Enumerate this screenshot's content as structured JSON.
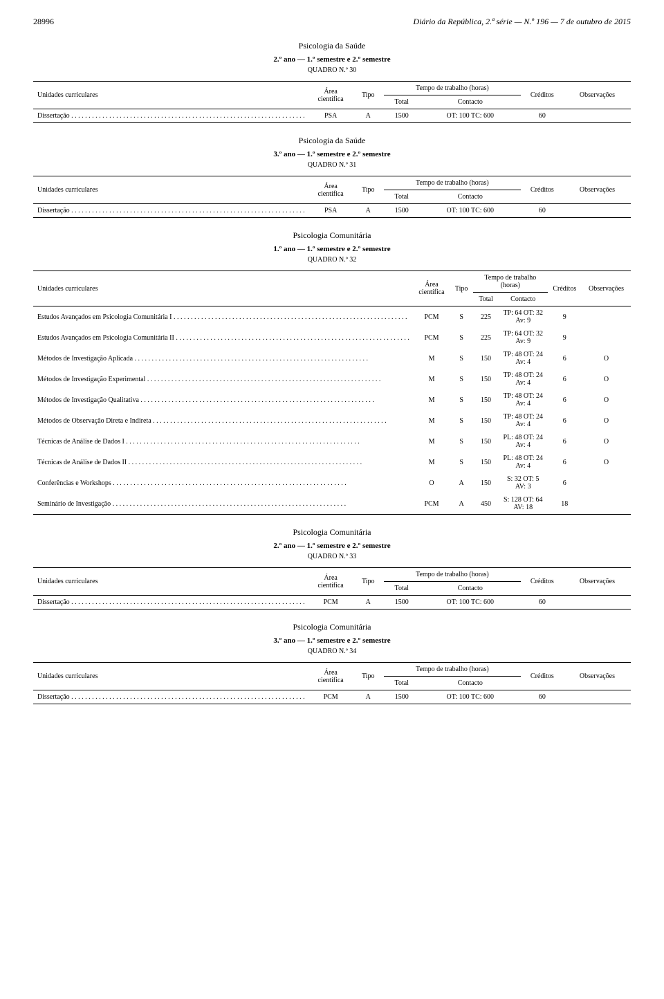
{
  "header": {
    "page_number": "28996",
    "publication": "Diário da República, 2.ª série — N.º 196 — 7 de outubro de 2015"
  },
  "table_headers": {
    "uc": "Unidades curriculares",
    "area": "Área científica",
    "tipo": "Tipo",
    "tempo": "Tempo de trabalho (horas)",
    "total": "Total",
    "contacto": "Contacto",
    "creditos": "Créditos",
    "obs": "Observações"
  },
  "sections": [
    {
      "title": "Psicologia da Saúde",
      "sub": "2.º ano — 1.º semestre e 2.º semestre",
      "quadro": "QUADRO N.º 30",
      "rows": [
        {
          "uc": "Dissertação",
          "area": "PSA",
          "tipo": "A",
          "total": "1500",
          "contacto": "OT: 100 TC: 600",
          "cred": "60",
          "obs": ""
        }
      ]
    },
    {
      "title": "Psicologia da Saúde",
      "sub": "3.º ano — 1.º semestre e 2.º semestre",
      "quadro": "QUADRO N.º 31",
      "rows": [
        {
          "uc": "Dissertação",
          "area": "PSA",
          "tipo": "A",
          "total": "1500",
          "contacto": "OT: 100 TC: 600",
          "cred": "60",
          "obs": ""
        }
      ]
    },
    {
      "title": "Psicologia Comunitária",
      "sub": "1.º ano — 1.º semestre e 2.º semestre",
      "quadro": "QUADRO N.º 32",
      "rows": [
        {
          "uc": "Estudos Avançados em Psicologia Comunitária I",
          "area": "PCM",
          "tipo": "S",
          "total": "225",
          "contacto": "TP: 64 OT: 32 Av: 9",
          "cred": "9",
          "obs": ""
        },
        {
          "uc": "Estudos Avançados em Psicologia Comunitária II",
          "area": "PCM",
          "tipo": "S",
          "total": "225",
          "contacto": "TP: 64 OT: 32 Av: 9",
          "cred": "9",
          "obs": ""
        },
        {
          "uc": "Métodos de Investigação Aplicada",
          "area": "M",
          "tipo": "S",
          "total": "150",
          "contacto": "TP: 48 OT: 24 Av: 4",
          "cred": "6",
          "obs": "O"
        },
        {
          "uc": "Métodos de Investigação Experimental",
          "area": "M",
          "tipo": "S",
          "total": "150",
          "contacto": "TP: 48 OT: 24 Av: 4",
          "cred": "6",
          "obs": "O"
        },
        {
          "uc": "Métodos de Investigação Qualitativa",
          "area": "M",
          "tipo": "S",
          "total": "150",
          "contacto": "TP: 48 OT: 24 Av: 4",
          "cred": "6",
          "obs": "O"
        },
        {
          "uc": "Métodos de Observação Direta e Indireta",
          "area": "M",
          "tipo": "S",
          "total": "150",
          "contacto": "TP: 48 OT: 24 Av: 4",
          "cred": "6",
          "obs": "O"
        },
        {
          "uc": "Técnicas de Análise de Dados I",
          "area": "M",
          "tipo": "S",
          "total": "150",
          "contacto": "PL: 48 OT: 24 Av: 4",
          "cred": "6",
          "obs": "O"
        },
        {
          "uc": "Técnicas de Análise de Dados II",
          "area": "M",
          "tipo": "S",
          "total": "150",
          "contacto": "PL: 48 OT: 24 Av: 4",
          "cred": "6",
          "obs": "O"
        },
        {
          "uc": "Conferências e Workshops",
          "area": "O",
          "tipo": "A",
          "total": "150",
          "contacto": "S: 32 OT: 5 AV: 3",
          "cred": "6",
          "obs": ""
        },
        {
          "uc": "Seminário de Investigação",
          "area": "PCM",
          "tipo": "A",
          "total": "450",
          "contacto": "S: 128 OT: 64 AV: 18",
          "cred": "18",
          "obs": ""
        }
      ]
    },
    {
      "title": "Psicologia Comunitária",
      "sub": "2.º ano — 1.º semestre e 2.º semestre",
      "quadro": "QUADRO N.º 33",
      "rows": [
        {
          "uc": "Dissertação",
          "area": "PCM",
          "tipo": "A",
          "total": "1500",
          "contacto": "OT: 100 TC: 600",
          "cred": "60",
          "obs": ""
        }
      ]
    },
    {
      "title": "Psicologia Comunitária",
      "sub": "3.º ano — 1.º semestre e 2.º semestre",
      "quadro": "QUADRO N.º 34",
      "rows": [
        {
          "uc": "Dissertação",
          "area": "PCM",
          "tipo": "A",
          "total": "1500",
          "contacto": "OT: 100 TC: 600",
          "cred": "60",
          "obs": ""
        }
      ]
    }
  ]
}
